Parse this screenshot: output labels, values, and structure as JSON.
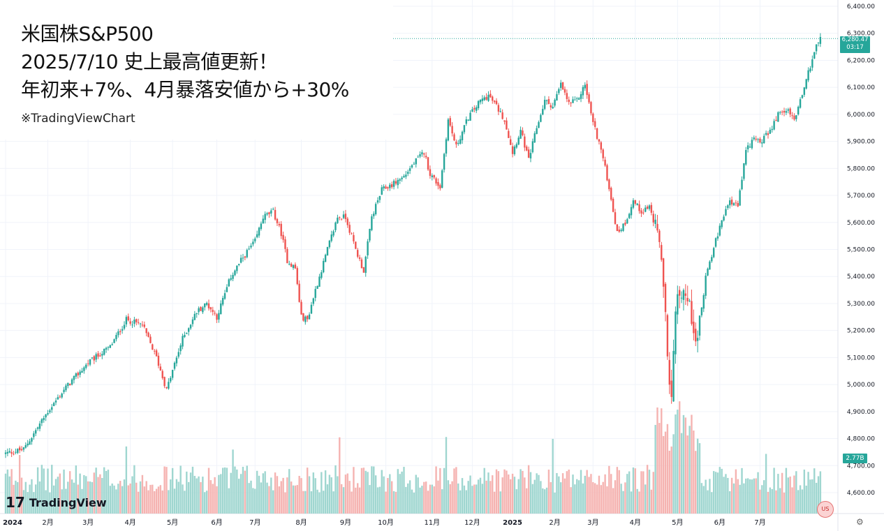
{
  "headline": {
    "line1": "米国株S&P500",
    "line2": "2025/7/10 史上最高値更新！",
    "line3": "年初来+7%、4月暴落安値から+30%",
    "source": "※TradingViewChart"
  },
  "branding": {
    "logo_mark": "17",
    "logo_text": "TradingView"
  },
  "price_tag": {
    "price": "6,280.47",
    "countdown": "03:17"
  },
  "volume_tag": {
    "value": "2.77B"
  },
  "colors": {
    "up": "#26a69a",
    "down": "#ef5350",
    "up_vol": "#9fd6d0",
    "down_vol": "#f5b3b1",
    "grid": "#f0f3fa",
    "axis_text": "#131722"
  },
  "icons": {
    "flag": "us-flag-icon",
    "settings": "gear-icon"
  },
  "chart_data": {
    "type": "candlestick",
    "y_axis": {
      "ylim": [
        4540,
        6420
      ],
      "ticks": [
        4600,
        4700,
        4800,
        4900,
        5000,
        5100,
        5200,
        5300,
        5400,
        5500,
        5600,
        5700,
        5800,
        5900,
        6000,
        6100,
        6200,
        6300,
        6400
      ],
      "tick_labels": [
        "4,600.00",
        "4,700.00",
        "4,800.00",
        "4,900.00",
        "5,000.00",
        "5,100.00",
        "5,200.00",
        "5,300.00",
        "5,400.00",
        "5,500.00",
        "5,600.00",
        "5,700.00",
        "5,800.00",
        "5,900.00",
        "6,000.00",
        "6,100.00",
        "6,200.00",
        "6,300.00",
        "6,400.00"
      ]
    },
    "x_axis": {
      "labels": [
        "2024",
        "2月",
        "3月",
        "4月",
        "5月",
        "6月",
        "7月",
        "8月",
        "9月",
        "10月",
        "11月",
        "12月",
        "2025",
        "2月",
        "3月",
        "4月",
        "5月",
        "6月",
        "7月"
      ],
      "label_day_index": [
        0,
        21,
        41,
        62,
        83,
        105,
        124,
        147,
        169,
        189,
        212,
        232,
        252,
        273,
        292,
        313,
        334,
        355,
        375
      ]
    },
    "total_days": 384,
    "current_price": 6280.47,
    "anchor_points": [
      [
        0,
        4745
      ],
      [
        9,
        4760
      ],
      [
        21,
        4900
      ],
      [
        30,
        4990
      ],
      [
        41,
        5080
      ],
      [
        52,
        5140
      ],
      [
        60,
        5240
      ],
      [
        68,
        5220
      ],
      [
        75,
        5100
      ],
      [
        80,
        4980
      ],
      [
        88,
        5170
      ],
      [
        95,
        5270
      ],
      [
        100,
        5300
      ],
      [
        105,
        5250
      ],
      [
        112,
        5400
      ],
      [
        118,
        5470
      ],
      [
        124,
        5530
      ],
      [
        128,
        5620
      ],
      [
        133,
        5640
      ],
      [
        137,
        5560
      ],
      [
        140,
        5460
      ],
      [
        144,
        5430
      ],
      [
        147,
        5250
      ],
      [
        150,
        5240
      ],
      [
        154,
        5350
      ],
      [
        160,
        5500
      ],
      [
        165,
        5620
      ],
      [
        169,
        5620
      ],
      [
        174,
        5500
      ],
      [
        178,
        5420
      ],
      [
        182,
        5620
      ],
      [
        187,
        5720
      ],
      [
        192,
        5740
      ],
      [
        198,
        5770
      ],
      [
        203,
        5820
      ],
      [
        208,
        5860
      ],
      [
        211,
        5780
      ],
      [
        216,
        5730
      ],
      [
        220,
        5980
      ],
      [
        224,
        5880
      ],
      [
        230,
        5990
      ],
      [
        236,
        6050
      ],
      [
        240,
        6070
      ],
      [
        244,
        6030
      ],
      [
        248,
        5980
      ],
      [
        252,
        5860
      ],
      [
        256,
        5940
      ],
      [
        260,
        5830
      ],
      [
        264,
        5950
      ],
      [
        268,
        6050
      ],
      [
        272,
        6030
      ],
      [
        276,
        6110
      ],
      [
        280,
        6040
      ],
      [
        284,
        6050
      ],
      [
        288,
        6110
      ],
      [
        292,
        5970
      ],
      [
        296,
        5870
      ],
      [
        300,
        5730
      ],
      [
        304,
        5560
      ],
      [
        308,
        5600
      ],
      [
        312,
        5680
      ],
      [
        316,
        5640
      ],
      [
        320,
        5660
      ],
      [
        324,
        5550
      ],
      [
        327,
        5390
      ],
      [
        329,
        5080
      ],
      [
        331,
        4990
      ],
      [
        333,
        5280
      ],
      [
        336,
        5350
      ],
      [
        340,
        5290
      ],
      [
        344,
        5160
      ],
      [
        348,
        5400
      ],
      [
        352,
        5510
      ],
      [
        356,
        5600
      ],
      [
        360,
        5680
      ],
      [
        364,
        5660
      ],
      [
        368,
        5860
      ],
      [
        372,
        5920
      ],
      [
        376,
        5900
      ],
      [
        380,
        5940
      ],
      [
        384,
        6000
      ],
      [
        388,
        6020
      ],
      [
        392,
        5980
      ],
      [
        396,
        6080
      ],
      [
        400,
        6180
      ],
      [
        403,
        6260
      ],
      [
        405,
        6280
      ]
    ],
    "volume_scale": "relative"
  }
}
